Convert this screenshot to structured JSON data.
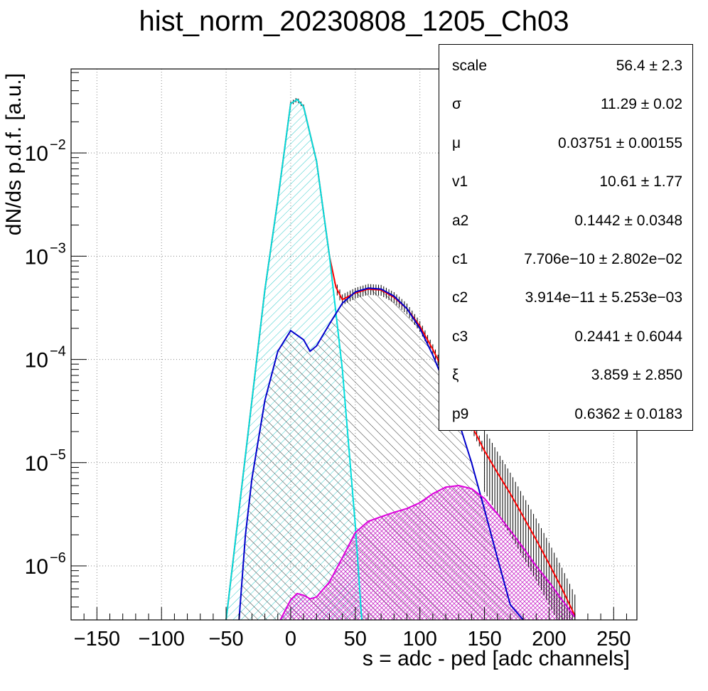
{
  "title": "hist_norm_20230808_1205_Ch03",
  "chart_data": {
    "type": "line",
    "xlabel": "s = adc - ped [adc channels]",
    "ylabel": "dN/ds p.d.f. [a.u.]",
    "xlim": [
      -170,
      268
    ],
    "ylim": [
      3e-07,
      0.065
    ],
    "yscale": "log",
    "grid": true,
    "xticks": [
      -150,
      -100,
      -50,
      0,
      50,
      100,
      150,
      200,
      250
    ],
    "yticks": [
      {
        "value": 1e-06,
        "label": "10",
        "exp": "−6"
      },
      {
        "value": 1e-05,
        "label": "10",
        "exp": "−5"
      },
      {
        "value": 0.0001,
        "label": "10",
        "exp": "−4"
      },
      {
        "value": 0.001,
        "label": "10",
        "exp": "−3"
      },
      {
        "value": 0.01,
        "label": "10",
        "exp": "−2"
      }
    ],
    "series": [
      {
        "color": "#ff0000",
        "x": [
          -50,
          -40,
          -30,
          -20,
          -10,
          0,
          5,
          10,
          20,
          30,
          35,
          40,
          50,
          60,
          70,
          80,
          90,
          100,
          110,
          120,
          130,
          140,
          150,
          160,
          170,
          180,
          190,
          200,
          210,
          220
        ],
        "y": [
          3e-07,
          3.5e-06,
          4e-05,
          0.00047,
          0.0035,
          0.03,
          0.033,
          0.028,
          0.0083,
          0.001,
          0.0005,
          0.00038,
          0.00044,
          0.00048,
          0.00047,
          0.0004,
          0.00031,
          0.00021,
          0.000125,
          7e-05,
          3.9e-05,
          2.3e-05,
          1.3e-05,
          8e-06,
          5e-06,
          3e-06,
          1.8e-06,
          1.05e-06,
          6e-07,
          3.3e-07
        ]
      },
      {
        "color": "#0000cc",
        "x": [
          -40,
          -35,
          -30,
          -20,
          -10,
          0,
          10,
          15,
          20,
          30,
          40,
          50,
          60,
          70,
          80,
          90,
          100,
          110,
          120,
          130,
          140,
          150,
          160,
          170,
          180
        ],
        "y": [
          3e-07,
          2e-06,
          7e-06,
          4e-05,
          0.00012,
          0.00019,
          0.000155,
          0.00012,
          0.000135,
          0.00022,
          0.00035,
          0.00045,
          0.00049,
          0.00048,
          0.00041,
          0.00031,
          0.0002,
          0.00011,
          5.5e-05,
          2.5e-05,
          1e-05,
          3.5e-06,
          1.2e-06,
          4.2e-07,
          3e-07
        ]
      },
      {
        "color": "#00dddd",
        "x": [
          -50,
          -40,
          -30,
          -20,
          -10,
          0,
          5,
          10,
          20,
          30,
          40,
          50,
          55
        ],
        "y": [
          3e-07,
          3.5e-06,
          4e-05,
          0.00047,
          0.0035,
          0.03,
          0.033,
          0.028,
          0.0083,
          0.001,
          8e-05,
          2.5e-06,
          3e-07
        ]
      },
      {
        "color": "#dd00dd",
        "x": [
          -8,
          0,
          5,
          10,
          15,
          20,
          30,
          40,
          50,
          60,
          70,
          80,
          90,
          100,
          110,
          120,
          130,
          140,
          150,
          160,
          170,
          180,
          190,
          200,
          210,
          220
        ],
        "y": [
          3e-07,
          4.7e-07,
          5.4e-07,
          5.2e-07,
          4.8e-07,
          5e-07,
          7e-07,
          1.2e-06,
          2.1e-06,
          2.7e-06,
          3e-06,
          3.3e-06,
          3.6e-06,
          4.1e-06,
          5e-06,
          5.8e-06,
          6e-06,
          5.6e-06,
          4.5e-06,
          3.2e-06,
          2.2e-06,
          1.5e-06,
          1e-06,
          7e-07,
          4.7e-07,
          3.2e-07
        ]
      }
    ]
  },
  "stats": [
    {
      "name": "scale",
      "value": "56.4 ± 2.3"
    },
    {
      "name": "σ",
      "value": "11.29 ± 0.02"
    },
    {
      "name": "μ",
      "value": "0.03751 ± 0.00155"
    },
    {
      "name": "v1",
      "value": "10.61 ± 1.77"
    },
    {
      "name": "a2",
      "value": "0.1442 ± 0.0348"
    },
    {
      "name": "c1",
      "value": "7.706e−10 ± 2.802e−02"
    },
    {
      "name": "c2",
      "value": "3.914e−11 ± 5.253e−03"
    },
    {
      "name": "c3",
      "value": "0.2441 ± 0.6044"
    },
    {
      "name": "ξ",
      "value": "3.859 ± 2.850"
    },
    {
      "name": "p9",
      "value": "0.6362 ± 0.0183"
    }
  ]
}
